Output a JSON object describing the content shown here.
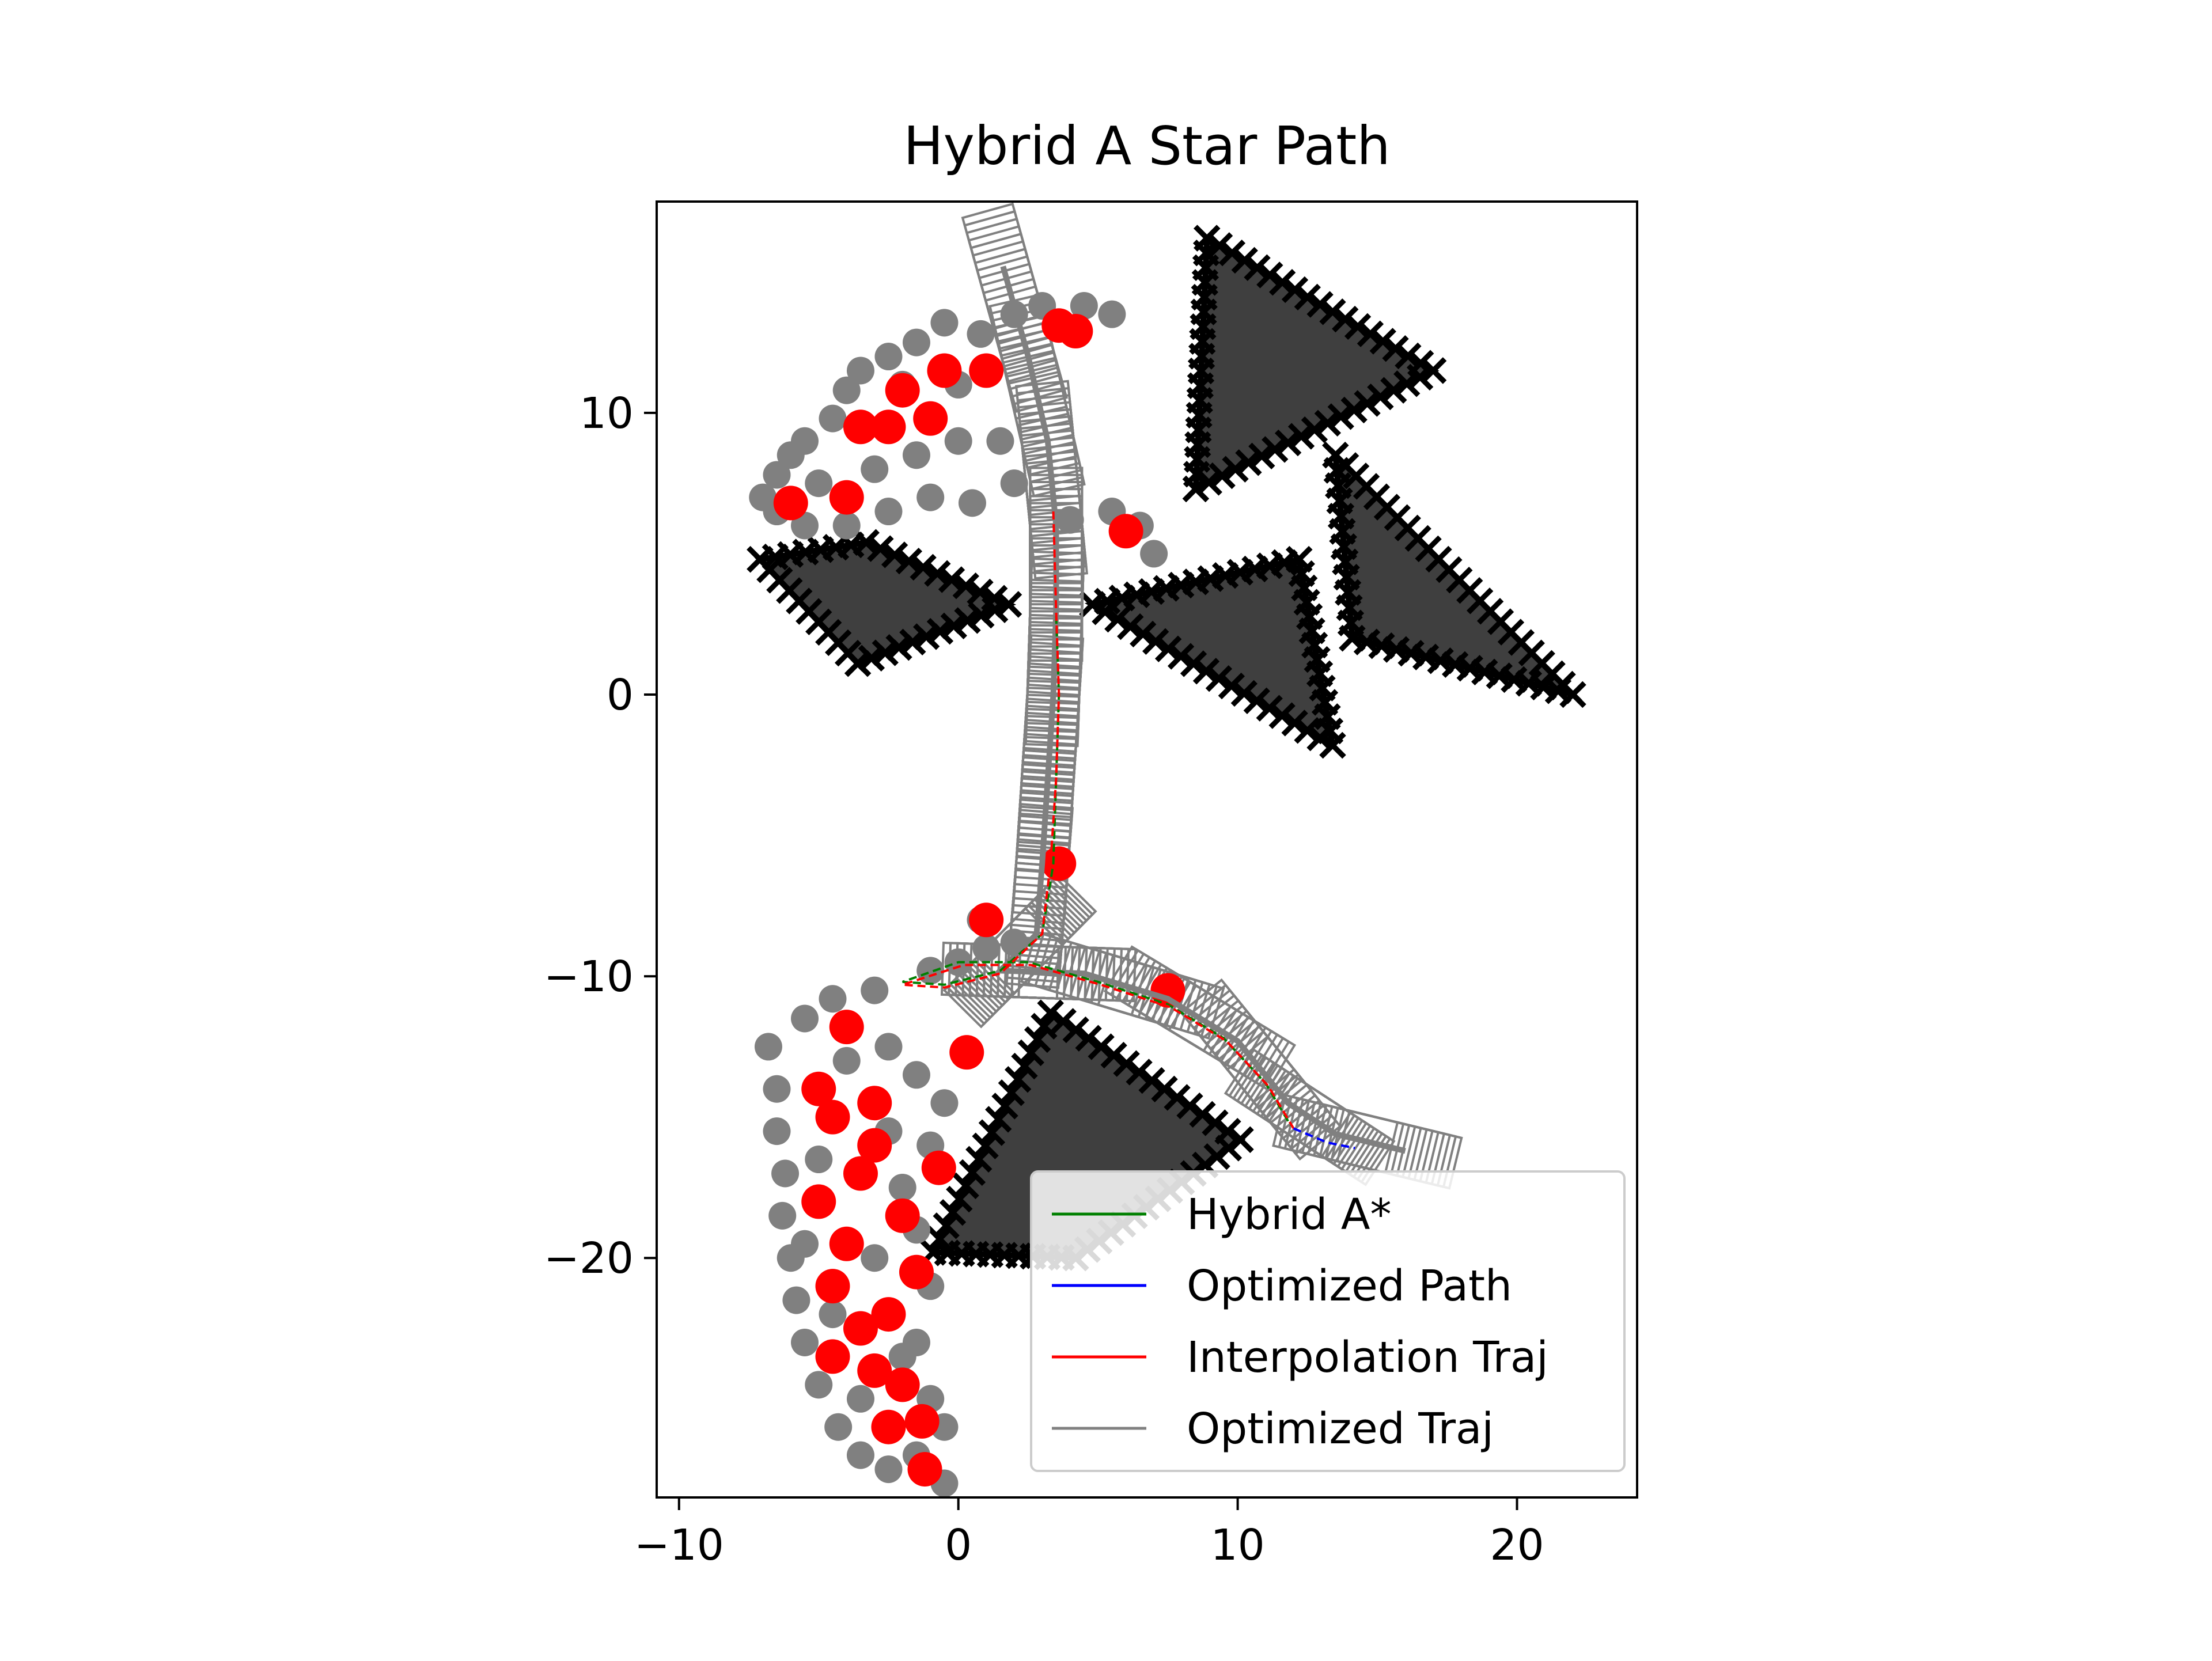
{
  "chart_data": {
    "type": "scatter",
    "title": "Hybrid A Star Path",
    "xlabel": "",
    "ylabel": "",
    "xlim": [
      -10.8,
      24.3
    ],
    "ylim": [
      -28.5,
      17.5
    ],
    "xticks": [
      -10,
      0,
      10,
      20
    ],
    "xtick_labels": [
      "−10",
      "0",
      "10",
      "20"
    ],
    "yticks": [
      10,
      0,
      -10,
      -20
    ],
    "ytick_labels": [
      "10",
      "0",
      "−10",
      "−20"
    ],
    "grid": false,
    "aspect": "equal",
    "legend_position": "lower-right",
    "obstacles": [
      {
        "name": "obstacle-top-right",
        "vertices": [
          [
            8.5,
            7.3
          ],
          [
            8.9,
            16.2
          ],
          [
            17.0,
            11.5
          ]
        ]
      },
      {
        "name": "obstacle-right",
        "vertices": [
          [
            13.5,
            8.5
          ],
          [
            14.1,
            2.0
          ],
          [
            22.0,
            0.0
          ]
        ]
      },
      {
        "name": "obstacle-middle-right",
        "vertices": [
          [
            4.8,
            3.2
          ],
          [
            13.4,
            -1.8
          ],
          [
            12.2,
            4.8
          ]
        ]
      },
      {
        "name": "obstacle-left-wing",
        "vertices": [
          [
            -7.1,
            4.8
          ],
          [
            -3.6,
            1.1
          ],
          [
            1.8,
            3.2
          ],
          [
            -3.3,
            5.4
          ]
        ]
      },
      {
        "name": "obstacle-bottom",
        "vertices": [
          [
            -0.9,
            -19.8
          ],
          [
            3.3,
            -11.3
          ],
          [
            10.1,
            -15.8
          ],
          [
            4.2,
            -20.0
          ]
        ]
      }
    ],
    "series": [
      {
        "name": "Hybrid A*",
        "color": "#008000",
        "points": [
          [
            3.5,
            2.8
          ],
          [
            3.6,
            0.0
          ],
          [
            3.5,
            -3.0
          ],
          [
            3.4,
            -6.0
          ],
          [
            3.0,
            -8.5
          ],
          [
            1.5,
            -9.8
          ],
          [
            -0.5,
            -10.3
          ],
          [
            -2.0,
            -10.2
          ],
          [
            0.0,
            -9.5
          ],
          [
            2.5,
            -9.5
          ],
          [
            5.0,
            -10.2
          ],
          [
            7.5,
            -11.0
          ],
          [
            9.5,
            -12.2
          ],
          [
            11.0,
            -13.8
          ],
          [
            11.9,
            -15.3
          ]
        ]
      },
      {
        "name": "Optimized Path",
        "color": "#0000ff",
        "points": [
          [
            12.0,
            -15.4
          ],
          [
            13.2,
            -15.9
          ],
          [
            14.2,
            -16.1
          ]
        ]
      },
      {
        "name": "Interpolation Traj",
        "color": "#ff0000",
        "points": [
          [
            3.4,
            6.5
          ],
          [
            3.5,
            3.0
          ],
          [
            3.6,
            0.0
          ],
          [
            3.5,
            -3.0
          ],
          [
            3.3,
            -6.0
          ],
          [
            3.0,
            -8.5
          ],
          [
            1.5,
            -9.9
          ],
          [
            -0.5,
            -10.4
          ],
          [
            -2.0,
            -10.3
          ],
          [
            0.2,
            -9.6
          ],
          [
            2.6,
            -9.6
          ],
          [
            5.1,
            -10.3
          ],
          [
            7.6,
            -11.1
          ],
          [
            9.6,
            -12.3
          ],
          [
            11.1,
            -13.9
          ],
          [
            12.0,
            -15.4
          ]
        ]
      },
      {
        "name": "Optimized Traj",
        "color": "#808080",
        "points": [
          [
            1.6,
            15.2
          ],
          [
            2.5,
            12.0
          ],
          [
            3.2,
            9.0
          ],
          [
            3.5,
            6.0
          ],
          [
            3.5,
            3.0
          ],
          [
            3.4,
            0.0
          ],
          [
            3.2,
            -3.0
          ],
          [
            3.0,
            -6.0
          ],
          [
            2.8,
            -8.5
          ],
          [
            1.5,
            -9.8
          ],
          [
            4.5,
            -9.9
          ],
          [
            7.5,
            -10.8
          ],
          [
            10.0,
            -12.3
          ],
          [
            11.8,
            -14.5
          ],
          [
            13.5,
            -15.6
          ],
          [
            16.0,
            -16.2
          ]
        ]
      }
    ],
    "footprints_red": [
      [
        -4.0,
        -11.8
      ],
      [
        -5.0,
        -14.0
      ],
      [
        -3.0,
        -14.5
      ],
      [
        -4.5,
        -15.0
      ],
      [
        -3.5,
        -17.0
      ],
      [
        -5.0,
        -18.0
      ],
      [
        -4.0,
        -19.5
      ],
      [
        -4.5,
        -21.0
      ],
      [
        -3.5,
        -22.5
      ],
      [
        -2.5,
        -22.0
      ],
      [
        -3.0,
        -24.0
      ],
      [
        -2.0,
        -24.5
      ],
      [
        -2.5,
        -26.0
      ],
      [
        -1.3,
        -25.8
      ],
      [
        -1.2,
        -27.5
      ],
      [
        -3.0,
        -16.0
      ],
      [
        -2.0,
        -18.5
      ],
      [
        -4.5,
        -23.5
      ],
      [
        -1.5,
        -20.5
      ],
      [
        0.3,
        -12.7
      ],
      [
        -0.7,
        -16.8
      ],
      [
        -6.0,
        6.8
      ],
      [
        -4.0,
        7.0
      ],
      [
        -2.5,
        9.5
      ],
      [
        -2.0,
        10.8
      ],
      [
        -1.0,
        9.8
      ],
      [
        -0.5,
        11.5
      ],
      [
        1.0,
        11.5
      ],
      [
        3.6,
        13.1
      ],
      [
        4.2,
        12.9
      ],
      [
        -3.5,
        9.5
      ],
      [
        6.0,
        5.8
      ],
      [
        1.0,
        -8.0
      ],
      [
        3.6,
        -6.0
      ],
      [
        7.5,
        -10.5
      ]
    ],
    "footprints_gray": [
      [
        -6.5,
        7.8
      ],
      [
        -7.0,
        7.0
      ],
      [
        -6.0,
        8.5
      ],
      [
        -5.5,
        9.0
      ],
      [
        -4.5,
        9.8
      ],
      [
        -4.0,
        10.8
      ],
      [
        -3.5,
        11.5
      ],
      [
        -2.5,
        12.0
      ],
      [
        -1.5,
        12.5
      ],
      [
        -0.5,
        13.2
      ],
      [
        0.8,
        12.8
      ],
      [
        2.0,
        13.5
      ],
      [
        3.0,
        13.8
      ],
      [
        4.5,
        13.8
      ],
      [
        5.5,
        13.5
      ],
      [
        -5.5,
        6.0
      ],
      [
        -4.0,
        6.0
      ],
      [
        -2.5,
        6.5
      ],
      [
        -1.0,
        7.0
      ],
      [
        0.5,
        6.8
      ],
      [
        2.0,
        7.5
      ],
      [
        4.0,
        6.2
      ],
      [
        5.5,
        6.5
      ],
      [
        6.5,
        6.0
      ],
      [
        7.0,
        5.0
      ],
      [
        -3.0,
        8.0
      ],
      [
        -1.5,
        8.5
      ],
      [
        0.0,
        9.0
      ],
      [
        1.5,
        9.0
      ],
      [
        -2.0,
        11.0
      ],
      [
        0.0,
        11.0
      ],
      [
        -5.0,
        7.5
      ],
      [
        -6.5,
        6.5
      ],
      [
        -6.8,
        -12.5
      ],
      [
        -6.5,
        -14.0
      ],
      [
        -6.5,
        -15.5
      ],
      [
        -6.2,
        -17.0
      ],
      [
        -6.3,
        -18.5
      ],
      [
        -6.0,
        -20.0
      ],
      [
        -5.8,
        -21.5
      ],
      [
        -5.5,
        -23.0
      ],
      [
        -5.0,
        -24.5
      ],
      [
        -4.3,
        -26.0
      ],
      [
        -3.5,
        -27.0
      ],
      [
        -2.5,
        -27.5
      ],
      [
        -1.5,
        -27.0
      ],
      [
        -0.5,
        -28.0
      ],
      [
        -5.5,
        -11.5
      ],
      [
        -4.5,
        -10.8
      ],
      [
        -3.0,
        -10.5
      ],
      [
        -2.5,
        -12.5
      ],
      [
        -1.5,
        -13.5
      ],
      [
        -0.5,
        -14.5
      ],
      [
        -1.0,
        -16.0
      ],
      [
        -2.0,
        -17.5
      ],
      [
        -1.5,
        -19.0
      ],
      [
        -1.0,
        -21.0
      ],
      [
        -1.5,
        -23.0
      ],
      [
        -1.0,
        -25.0
      ],
      [
        -5.0,
        -16.5
      ],
      [
        -5.5,
        -19.5
      ],
      [
        -4.5,
        -22.0
      ],
      [
        -3.5,
        -25.0
      ],
      [
        -4.0,
        -13.0
      ],
      [
        -2.5,
        -15.5
      ],
      [
        -3.0,
        -20.0
      ],
      [
        -2.0,
        -23.5
      ],
      [
        -0.5,
        -26.0
      ],
      [
        0.0,
        -9.5
      ],
      [
        1.0,
        -9.0
      ],
      [
        2.0,
        -8.8
      ],
      [
        -1.0,
        -9.8
      ],
      [
        0.8,
        -8.0
      ]
    ]
  }
}
